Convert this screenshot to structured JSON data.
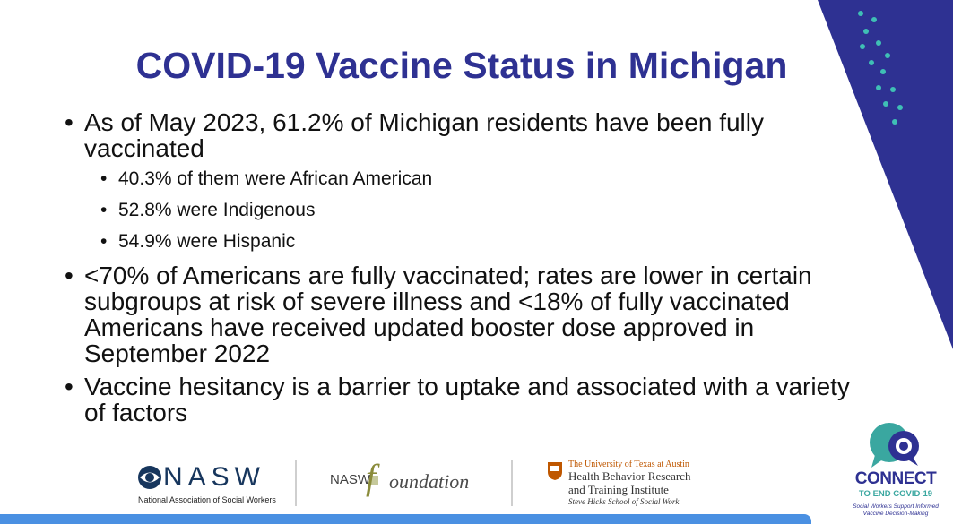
{
  "slide": {
    "title": "COVID-19 Vaccine Status in Michigan",
    "bullets": [
      {
        "text": "As of May 2023, 61.2% of Michigan residents have been fully vaccinated",
        "sub": [
          "40.3% of them were African American",
          "52.8% were Indigenous",
          "54.9% were Hispanic"
        ]
      },
      {
        "text": "<70% of Americans are fully vaccinated; rates are lower in certain subgroups at risk of severe illness and <18% of fully vaccinated Americans have received updated booster dose approved in September 2022"
      },
      {
        "text": "Vaccine hesitancy is a barrier to uptake and associated with a variety of factors"
      }
    ],
    "bullet_char": "•"
  },
  "logos": {
    "nasw": {
      "name": "NASW",
      "subtitle": "National Association of Social Workers"
    },
    "foundation": {
      "prefix": "NASW",
      "initial": "f",
      "word": "oundation"
    },
    "ut": {
      "line1": "The University of Texas at Austin",
      "line2": "Health Behavior Research",
      "line3": "and Training Institute",
      "line4": "Steve Hicks School of Social Work"
    },
    "connect": {
      "name": "CONNECT",
      "subtitle": "TO END COVID-19",
      "tagline1": "Social Workers Support Informed",
      "tagline2": "Vaccine Decision-Making"
    }
  },
  "colors": {
    "title": "#2e3192",
    "corner": "#2e3192",
    "dots": "#3fbfb5",
    "bottom_bar": "#4a90e2",
    "connect_teal": "#3aa7a0"
  }
}
